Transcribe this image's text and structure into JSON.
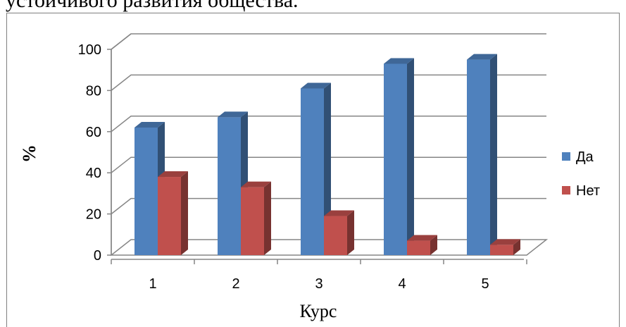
{
  "header": {
    "text": "устойчивого развития общества."
  },
  "chart_data": {
    "type": "bar",
    "categories": [
      "1",
      "2",
      "3",
      "4",
      "5"
    ],
    "series": [
      {
        "name": "Да",
        "values": [
          62,
          67,
          81,
          93,
          95
        ],
        "color": "#4f81bd"
      },
      {
        "name": "Нет",
        "values": [
          38,
          33,
          19,
          7,
          5
        ],
        "color": "#c0504d"
      }
    ],
    "xlabel": "Курс",
    "ylabel": "%",
    "ylim": [
      0,
      100
    ],
    "yticks": [
      "0",
      "20",
      "40",
      "60",
      "80",
      "100"
    ],
    "grid": true,
    "legend_position": "right",
    "style": "3d-clustered-column"
  }
}
